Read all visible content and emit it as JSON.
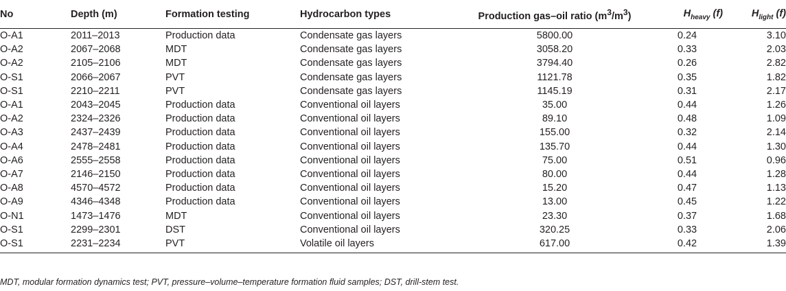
{
  "headers": {
    "no": "No",
    "depth": "Depth (m)",
    "formation_testing": "Formation testing",
    "hydrocarbon_types": "Hydrocarbon types",
    "gor_prefix": "Production gas–oil ratio (m",
    "gor_sup1": "3",
    "gor_mid": "/m",
    "gor_sup2": "3",
    "gor_suffix": ")",
    "hheavy_h": "H",
    "hheavy_sub": "heavy",
    "hheavy_unit": " (f)",
    "hlight_h": "H",
    "hlight_sub": "light",
    "hlight_unit": " (f)"
  },
  "rows": [
    {
      "no": "O-A1",
      "depth": "2011–2013",
      "testing": "Production data",
      "type": "Condensate gas layers",
      "gor": "5800.00",
      "hheavy": "0.24",
      "hlight": "3.10"
    },
    {
      "no": "O-A2",
      "depth": "2067–2068",
      "testing": "MDT",
      "type": "Condensate gas layers",
      "gor": "3058.20",
      "hheavy": "0.33",
      "hlight": "2.03"
    },
    {
      "no": "O-A2",
      "depth": "2105–2106",
      "testing": "MDT",
      "type": "Condensate gas layers",
      "gor": "3794.40",
      "hheavy": "0.26",
      "hlight": "2.82"
    },
    {
      "no": "O-S1",
      "depth": "2066–2067",
      "testing": "PVT",
      "type": "Condensate gas layers",
      "gor": "1121.78",
      "hheavy": "0.35",
      "hlight": "1.82"
    },
    {
      "no": "O-S1",
      "depth": "2210–2211",
      "testing": "PVT",
      "type": "Condensate gas layers",
      "gor": "1145.19",
      "hheavy": "0.31",
      "hlight": "2.17"
    },
    {
      "no": "O-A1",
      "depth": "2043–2045",
      "testing": "Production data",
      "type": "Conventional oil layers",
      "gor": "35.00",
      "hheavy": "0.44",
      "hlight": "1.26"
    },
    {
      "no": "O-A2",
      "depth": "2324–2326",
      "testing": "Production data",
      "type": "Conventional oil layers",
      "gor": "89.10",
      "hheavy": "0.48",
      "hlight": "1.09"
    },
    {
      "no": "O-A3",
      "depth": "2437–2439",
      "testing": "Production data",
      "type": "Conventional oil layers",
      "gor": "155.00",
      "hheavy": "0.32",
      "hlight": "2.14"
    },
    {
      "no": "O-A4",
      "depth": "2478–2481",
      "testing": "Production data",
      "type": "Conventional oil layers",
      "gor": "135.70",
      "hheavy": "0.44",
      "hlight": "1.30"
    },
    {
      "no": "O-A6",
      "depth": "2555–2558",
      "testing": "Production data",
      "type": "Conventional oil layers",
      "gor": "75.00",
      "hheavy": "0.51",
      "hlight": "0.96"
    },
    {
      "no": "O-A7",
      "depth": "2146–2150",
      "testing": "Production data",
      "type": "Conventional oil layers",
      "gor": "80.00",
      "hheavy": "0.44",
      "hlight": "1.28"
    },
    {
      "no": "O-A8",
      "depth": "4570–4572",
      "testing": "Production data",
      "type": "Conventional oil layers",
      "gor": "15.20",
      "hheavy": "0.47",
      "hlight": "1.13"
    },
    {
      "no": "O-A9",
      "depth": "4346–4348",
      "testing": "Production data",
      "type": "Conventional oil layers",
      "gor": "13.00",
      "hheavy": "0.45",
      "hlight": "1.22"
    },
    {
      "no": "O-N1",
      "depth": "1473–1476",
      "testing": "MDT",
      "type": "Conventional oil layers",
      "gor": "23.30",
      "hheavy": "0.37",
      "hlight": "1.68"
    },
    {
      "no": "O-S1",
      "depth": "2299–2301",
      "testing": "DST",
      "type": "Conventional oil layers",
      "gor": "320.25",
      "hheavy": "0.33",
      "hlight": "2.06"
    },
    {
      "no": "O-S1",
      "depth": "2231–2234",
      "testing": "PVT",
      "type": "Volatile oil layers",
      "gor": "617.00",
      "hheavy": "0.42",
      "hlight": "1.39"
    }
  ],
  "footnote": "MDT, modular formation dynamics test; PVT, pressure–volume–temperature formation fluid samples; DST, drill-stem test."
}
